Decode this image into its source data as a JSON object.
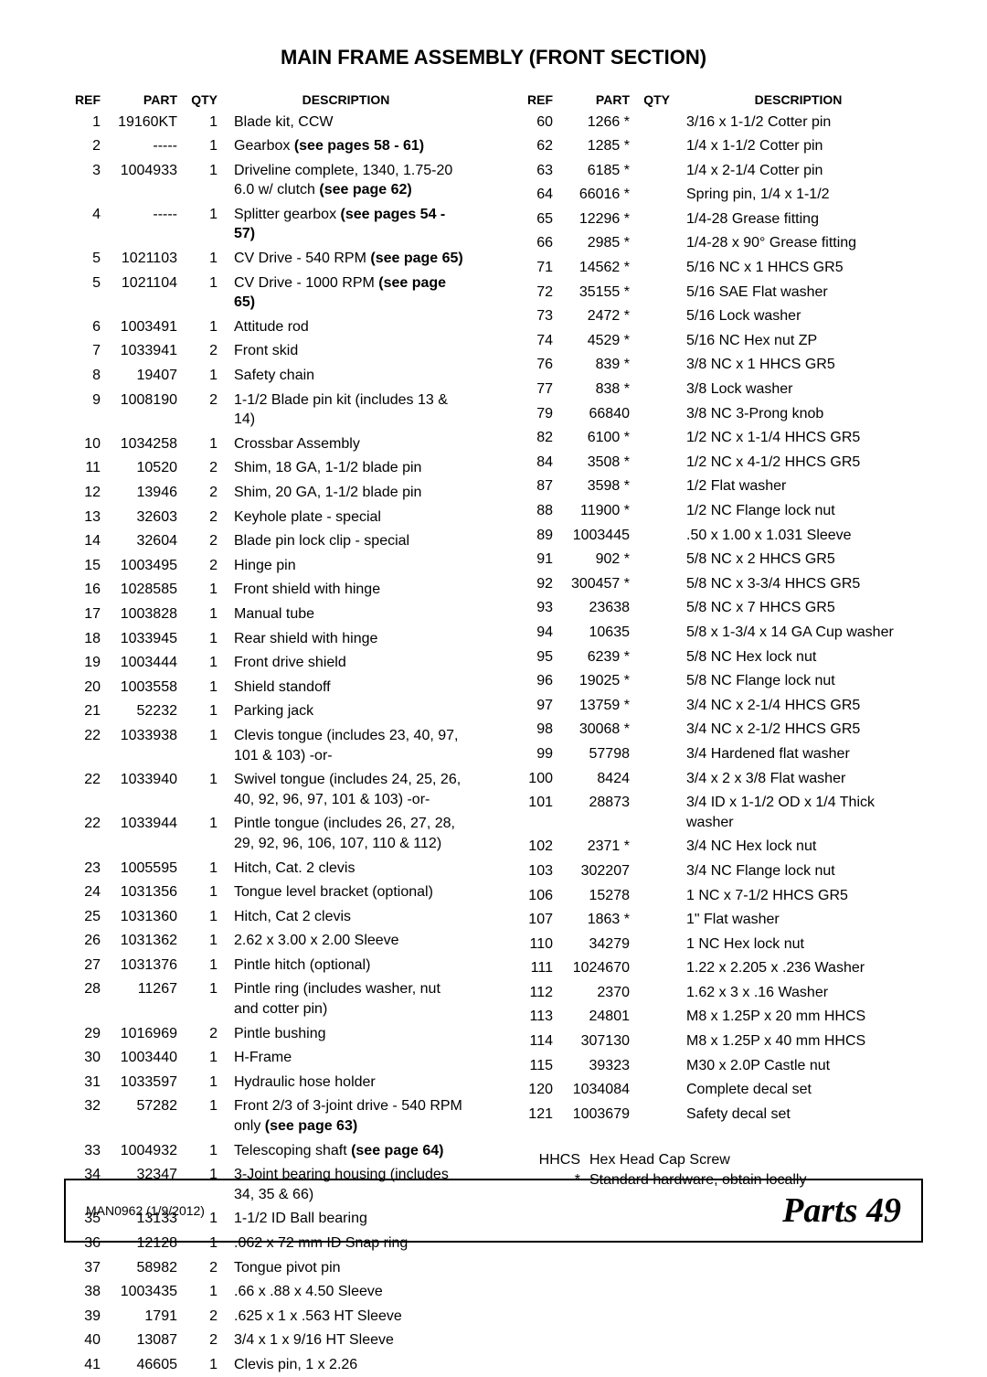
{
  "title": "MAIN FRAME ASSEMBLY (FRONT SECTION)",
  "headers": {
    "ref": "REF",
    "part": "PART",
    "qty": "QTY",
    "desc": "DESCRIPTION"
  },
  "left": [
    {
      "ref": "1",
      "part": "19160KT",
      "qty": "1",
      "desc": "Blade kit, CCW"
    },
    {
      "ref": "2",
      "part": "-----",
      "qty": "1",
      "desc": "Gearbox <b>(see pages 58 - 61)</b>"
    },
    {
      "ref": "3",
      "part": "1004933",
      "qty": "1",
      "desc": "Driveline complete, 1340, 1.75-20 6.0 w/ clutch <b>(see page 62)</b>"
    },
    {
      "ref": "4",
      "part": "-----",
      "qty": "1",
      "desc": "Splitter gearbox <b>(see pages 54 - 57)</b>"
    },
    {
      "ref": "5",
      "part": "1021103",
      "qty": "1",
      "desc": "CV Drive - 540 RPM <b>(see page 65)</b>"
    },
    {
      "ref": "5",
      "part": "1021104",
      "qty": "1",
      "desc": "CV Drive - 1000 RPM <b>(see page 65)</b>"
    },
    {
      "ref": "6",
      "part": "1003491",
      "qty": "1",
      "desc": "Attitude rod"
    },
    {
      "ref": "7",
      "part": "1033941",
      "qty": "2",
      "desc": "Front skid"
    },
    {
      "ref": "8",
      "part": "19407",
      "qty": "1",
      "desc": "Safety chain"
    },
    {
      "ref": "9",
      "part": "1008190",
      "qty": "2",
      "desc": "1-1/2 Blade pin kit (includes 13 & 14)"
    },
    {
      "ref": "10",
      "part": "1034258",
      "qty": "1",
      "desc": "Crossbar Assembly"
    },
    {
      "ref": "11",
      "part": "10520",
      "qty": "2",
      "desc": "Shim, 18 GA, 1-1/2 blade pin"
    },
    {
      "ref": "12",
      "part": "13946",
      "qty": "2",
      "desc": "Shim, 20 GA, 1-1/2 blade pin"
    },
    {
      "ref": "13",
      "part": "32603",
      "qty": "2",
      "desc": "Keyhole plate - special"
    },
    {
      "ref": "14",
      "part": "32604",
      "qty": "2",
      "desc": "Blade pin lock clip - special"
    },
    {
      "ref": "15",
      "part": "1003495",
      "qty": "2",
      "desc": "Hinge pin"
    },
    {
      "ref": "16",
      "part": "1028585",
      "qty": "1",
      "desc": "Front shield with hinge"
    },
    {
      "ref": "17",
      "part": "1003828",
      "qty": "1",
      "desc": "Manual tube"
    },
    {
      "ref": "18",
      "part": "1033945",
      "qty": "1",
      "desc": "Rear shield with hinge"
    },
    {
      "ref": "19",
      "part": "1003444",
      "qty": "1",
      "desc": "Front drive shield"
    },
    {
      "ref": "20",
      "part": "1003558",
      "qty": "1",
      "desc": "Shield standoff"
    },
    {
      "ref": "21",
      "part": "52232",
      "qty": "1",
      "desc": "Parking jack"
    },
    {
      "ref": "22",
      "part": "1033938",
      "qty": "1",
      "desc": "Clevis tongue (includes 23, 40, 97, 101 & 103)  -or-"
    },
    {
      "ref": "22",
      "part": "1033940",
      "qty": "1",
      "desc": "Swivel tongue (includes 24, 25, 26, 40, 92, 96, 97, 101 & 103) -or-"
    },
    {
      "ref": "22",
      "part": "1033944",
      "qty": "1",
      "desc": "Pintle tongue (includes 26, 27, 28, 29, 92, 96, 106, 107, 110 & 112)"
    },
    {
      "ref": "23",
      "part": "1005595",
      "qty": "1",
      "desc": "Hitch, Cat. 2 clevis"
    },
    {
      "ref": "24",
      "part": "1031356",
      "qty": "1",
      "desc": "Tongue level bracket (optional)"
    },
    {
      "ref": "25",
      "part": "1031360",
      "qty": "1",
      "desc": "Hitch, Cat 2 clevis"
    },
    {
      "ref": "26",
      "part": "1031362",
      "qty": "1",
      "desc": "2.62 x 3.00 x 2.00 Sleeve"
    },
    {
      "ref": "27",
      "part": "1031376",
      "qty": "1",
      "desc": "Pintle hitch (optional)"
    },
    {
      "ref": "28",
      "part": "11267",
      "qty": "1",
      "desc": "Pintle ring (includes washer, nut and cotter pin)"
    },
    {
      "ref": "29",
      "part": "1016969",
      "qty": "2",
      "desc": "Pintle bushing"
    },
    {
      "ref": "30",
      "part": "1003440",
      "qty": "1",
      "desc": "H-Frame"
    },
    {
      "ref": "31",
      "part": "1033597",
      "qty": "1",
      "desc": "Hydraulic hose holder"
    },
    {
      "ref": "32",
      "part": "57282",
      "qty": "1",
      "desc": "Front 2/3 of 3-joint drive - 540 RPM only <b>(see page 63)</b>"
    },
    {
      "ref": "33",
      "part": "1004932",
      "qty": "1",
      "desc": "Telescoping shaft <b>(see page 64)</b>"
    },
    {
      "ref": "34",
      "part": "32347",
      "qty": "1",
      "desc": "3-Joint bearing housing (includes 34, 35 & 66)"
    },
    {
      "ref": "35",
      "part": "13133",
      "qty": "1",
      "desc": "1-1/2 ID Ball bearing"
    },
    {
      "ref": "36",
      "part": "12128",
      "qty": "1",
      "desc": ".062 x 72 mm ID Snap ring"
    },
    {
      "ref": "37",
      "part": "58982",
      "qty": "2",
      "desc": "Tongue pivot pin"
    },
    {
      "ref": "38",
      "part": "1003435",
      "qty": "1",
      "desc": ".66 x .88 x 4.50 Sleeve"
    },
    {
      "ref": "39",
      "part": "1791",
      "qty": "2",
      "desc": ".625 x 1 x .563 HT Sleeve"
    },
    {
      "ref": "40",
      "part": "13087",
      "qty": "2",
      "desc": "3/4 x 1 x 9/16 HT Sleeve"
    },
    {
      "ref": "41",
      "part": "46605",
      "qty": "1",
      "desc": "Clevis pin, 1 x 2.26"
    }
  ],
  "right": [
    {
      "ref": "60",
      "part": "1266 *",
      "qty": "",
      "desc": "3/16 x 1-1/2 Cotter pin"
    },
    {
      "ref": "62",
      "part": "1285 *",
      "qty": "",
      "desc": "1/4 x 1-1/2 Cotter pin"
    },
    {
      "ref": "63",
      "part": "6185 *",
      "qty": "",
      "desc": "1/4 x 2-1/4 Cotter pin"
    },
    {
      "ref": "64",
      "part": "66016 *",
      "qty": "",
      "desc": "Spring pin, 1/4 x 1-1/2"
    },
    {
      "ref": "65",
      "part": "12296 *",
      "qty": "",
      "desc": "1/4-28 Grease fitting"
    },
    {
      "ref": "66",
      "part": "2985 *",
      "qty": "",
      "desc": "1/4-28 x 90° Grease fitting"
    },
    {
      "ref": "71",
      "part": "14562 *",
      "qty": "",
      "desc": "5/16 NC x 1 HHCS GR5"
    },
    {
      "ref": "72",
      "part": "35155 *",
      "qty": "",
      "desc": "5/16 SAE Flat washer"
    },
    {
      "ref": "73",
      "part": "2472 *",
      "qty": "",
      "desc": "5/16 Lock washer"
    },
    {
      "ref": "74",
      "part": "4529 *",
      "qty": "",
      "desc": "5/16 NC Hex nut  ZP"
    },
    {
      "ref": "76",
      "part": "839 *",
      "qty": "",
      "desc": "3/8 NC x 1 HHCS GR5"
    },
    {
      "ref": "77",
      "part": "838 *",
      "qty": "",
      "desc": "3/8 Lock washer"
    },
    {
      "ref": "79",
      "part": "66840",
      "qty": "",
      "desc": "3/8 NC 3-Prong knob"
    },
    {
      "ref": "82",
      "part": "6100 *",
      "qty": "",
      "desc": "1/2 NC x 1-1/4 HHCS GR5"
    },
    {
      "ref": "84",
      "part": "3508 *",
      "qty": "",
      "desc": "1/2 NC x 4-1/2 HHCS GR5"
    },
    {
      "ref": "87",
      "part": "3598 *",
      "qty": "",
      "desc": "1/2 Flat washer"
    },
    {
      "ref": "88",
      "part": "11900 *",
      "qty": "",
      "desc": "1/2 NC Flange lock nut"
    },
    {
      "ref": "89",
      "part": "1003445",
      "qty": "",
      "desc": ".50 x 1.00 x 1.031 Sleeve"
    },
    {
      "ref": "91",
      "part": "902 *",
      "qty": "",
      "desc": "5/8 NC x 2 HHCS GR5"
    },
    {
      "ref": "92",
      "part": "300457 *",
      "qty": "",
      "desc": "5/8 NC x 3-3/4 HHCS GR5"
    },
    {
      "ref": "93",
      "part": "23638",
      "qty": "",
      "desc": "5/8 NC x 7 HHCS GR5"
    },
    {
      "ref": "94",
      "part": "10635",
      "qty": "",
      "desc": "5/8 x 1-3/4 x 14 GA Cup washer"
    },
    {
      "ref": "95",
      "part": "6239 *",
      "qty": "",
      "desc": "5/8 NC Hex lock nut"
    },
    {
      "ref": "96",
      "part": "19025 *",
      "qty": "",
      "desc": "5/8 NC Flange lock nut"
    },
    {
      "ref": "97",
      "part": "13759 *",
      "qty": "",
      "desc": "3/4 NC x 2-1/4 HHCS GR5"
    },
    {
      "ref": "98",
      "part": "30068 *",
      "qty": "",
      "desc": "3/4 NC x 2-1/2 HHCS GR5"
    },
    {
      "ref": "99",
      "part": "57798",
      "qty": "",
      "desc": "3/4 Hardened flat washer"
    },
    {
      "ref": "100",
      "part": "8424",
      "qty": "",
      "desc": "3/4 x 2 x 3/8 Flat washer"
    },
    {
      "ref": "101",
      "part": "28873",
      "qty": "",
      "desc": "3/4 ID x 1-1/2 OD x 1/4 Thick washer"
    },
    {
      "ref": "102",
      "part": "2371 *",
      "qty": "",
      "desc": "3/4 NC Hex lock nut"
    },
    {
      "ref": "103",
      "part": "302207",
      "qty": "",
      "desc": "3/4 NC Flange lock nut"
    },
    {
      "ref": "106",
      "part": "15278",
      "qty": "",
      "desc": "1 NC x 7-1/2 HHCS GR5"
    },
    {
      "ref": "107",
      "part": "1863 *",
      "qty": "",
      "desc": "1\" Flat washer"
    },
    {
      "ref": "110",
      "part": "34279",
      "qty": "",
      "desc": "1 NC Hex lock nut"
    },
    {
      "ref": "111",
      "part": "1024670",
      "qty": "",
      "desc": "1.22 x 2.205 x .236 Washer"
    },
    {
      "ref": "112",
      "part": "2370",
      "qty": "",
      "desc": "1.62 x 3 x .16 Washer"
    },
    {
      "ref": "113",
      "part": "24801",
      "qty": "",
      "desc": "M8 x 1.25P x 20 mm HHCS"
    },
    {
      "ref": "114",
      "part": "307130",
      "qty": "",
      "desc": "M8 x 1.25P x 40 mm HHCS"
    },
    {
      "ref": "115",
      "part": "39323",
      "qty": "",
      "desc": "M30 x 2.0P Castle nut"
    },
    {
      "ref": "120",
      "part": "1034084",
      "qty": "",
      "desc": "Complete decal set"
    },
    {
      "ref": "121",
      "part": "1003679",
      "qty": "",
      "desc": "Safety decal set"
    }
  ],
  "legend": [
    {
      "k": "HHCS",
      "v": "Hex Head Cap Screw"
    },
    {
      "k": "*",
      "v": "Standard hardware, obtain locally"
    }
  ],
  "footer": {
    "left": "MAN0962 (1/9/2012)",
    "right_word": "Parts",
    "right_num": "49"
  }
}
